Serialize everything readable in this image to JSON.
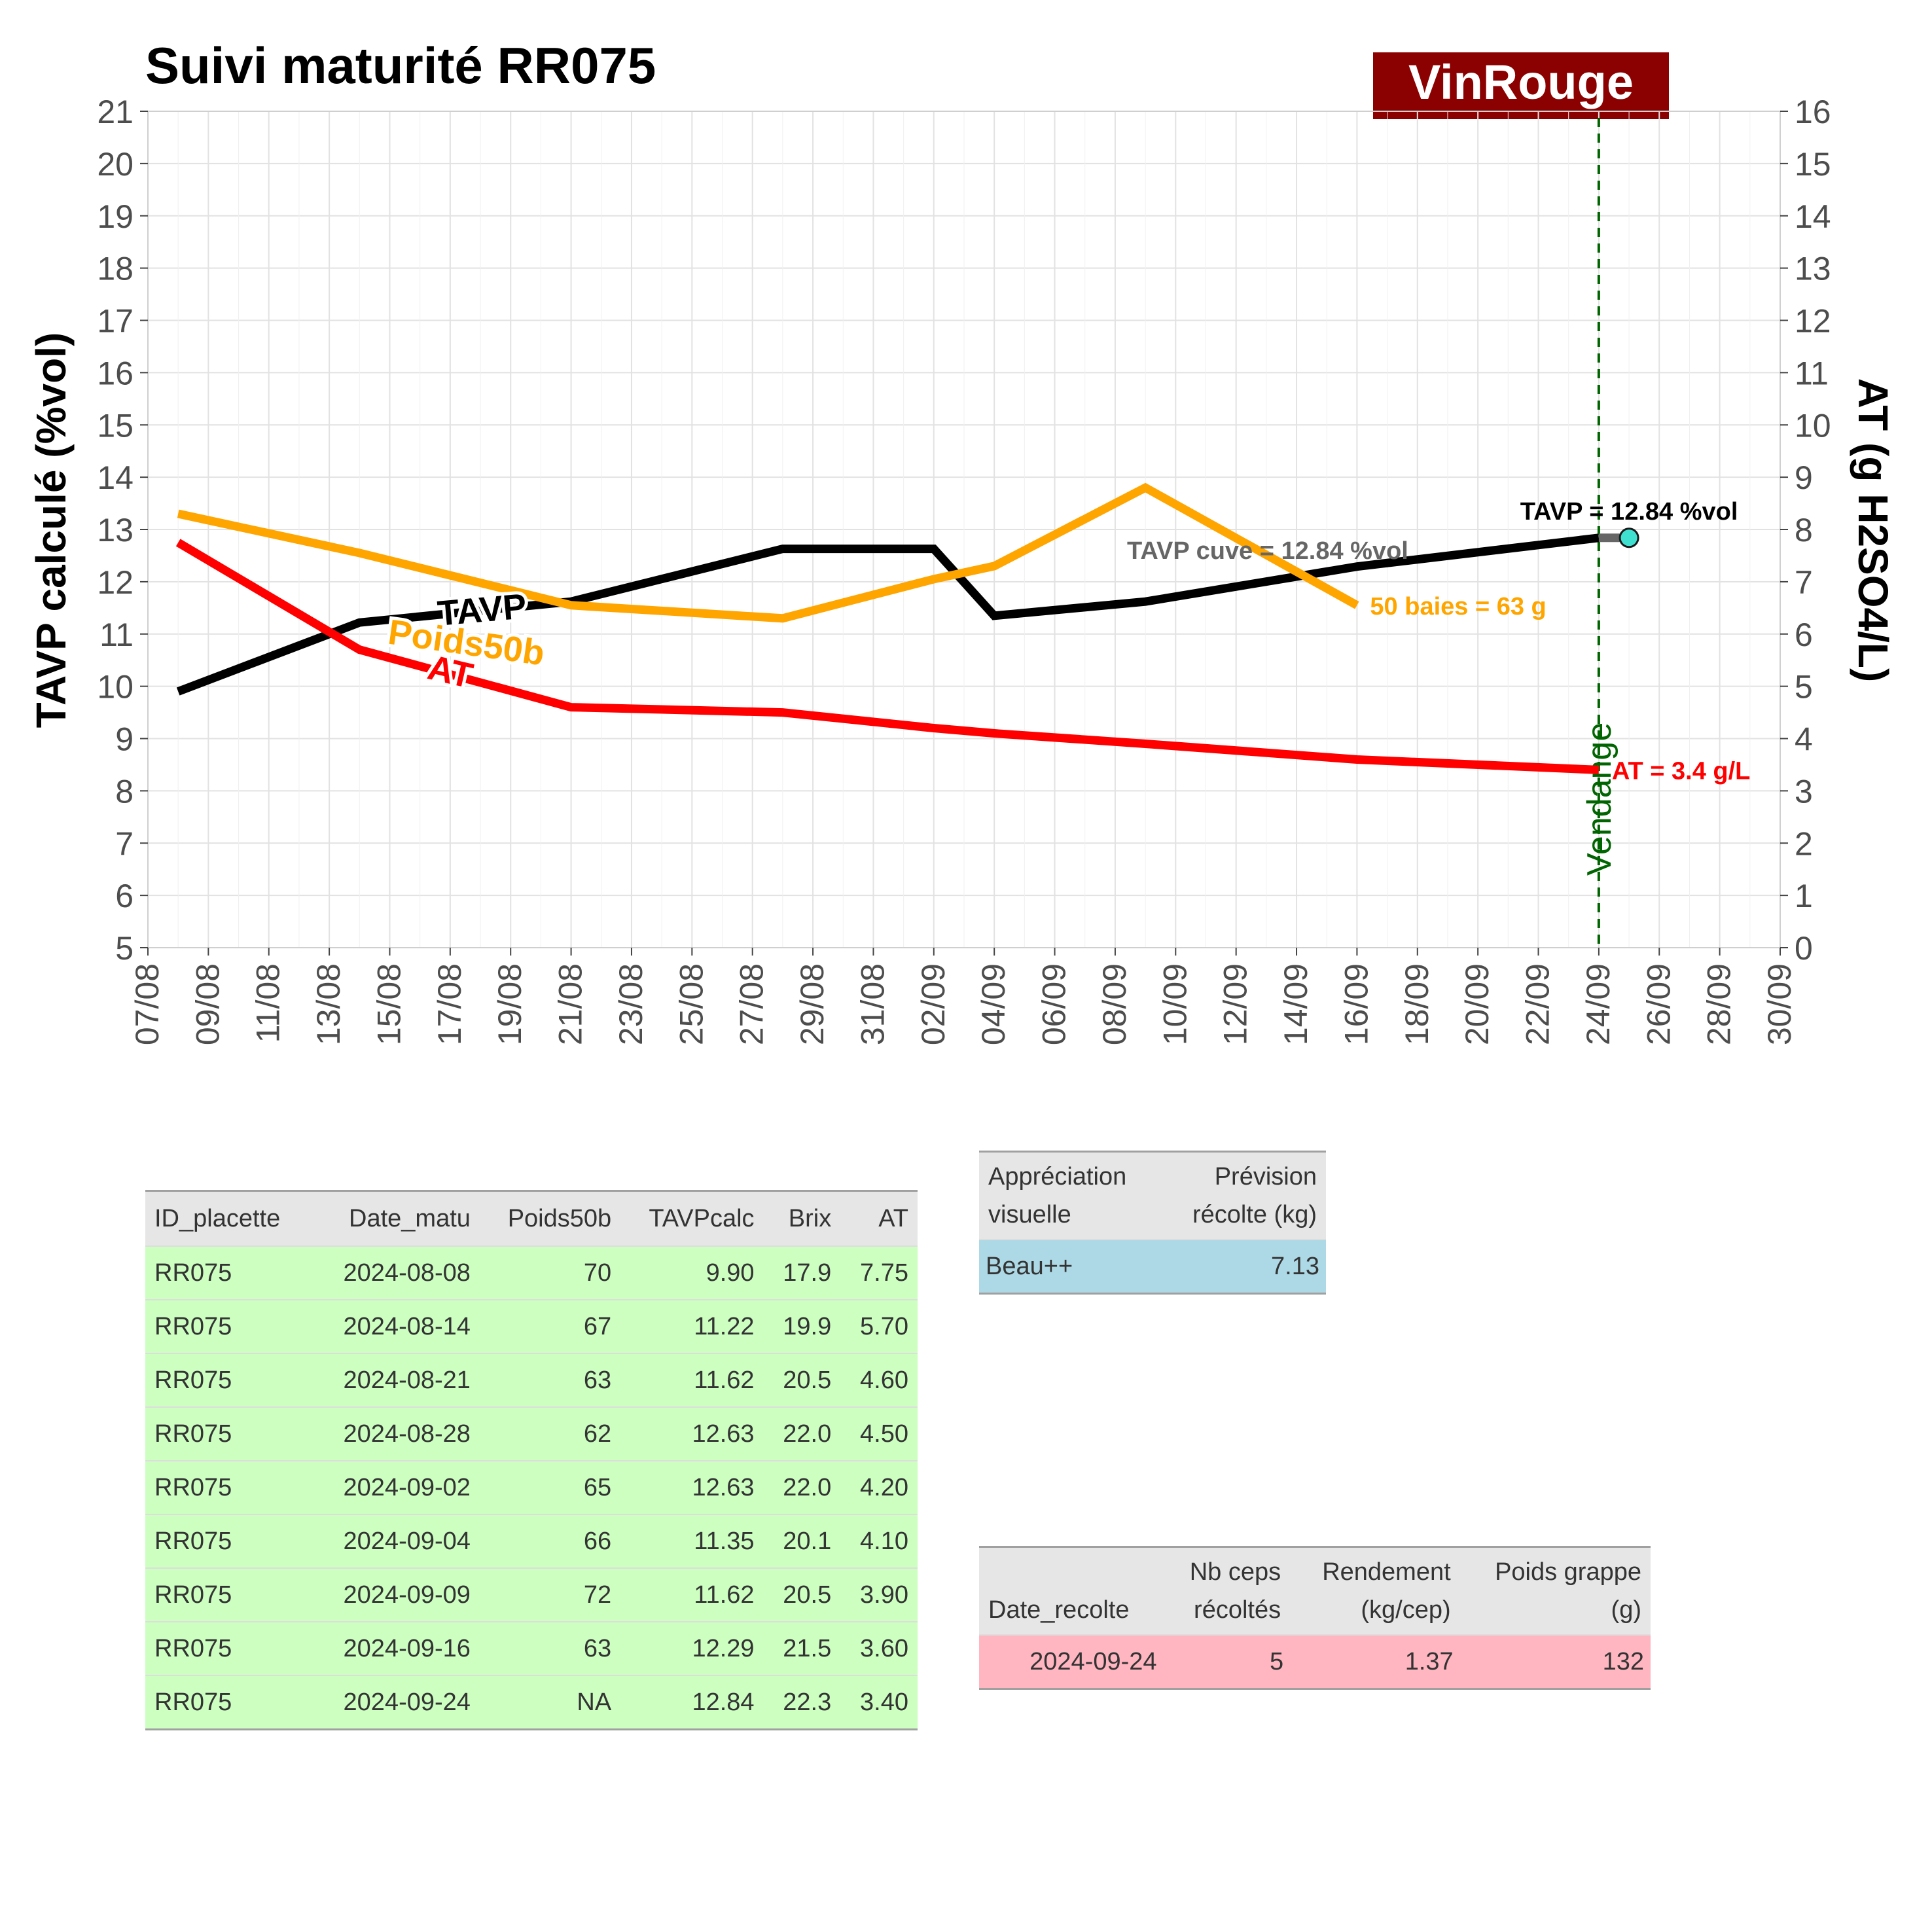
{
  "title": "Suivi maturité  RR075",
  "brand": {
    "label": "VinRouge",
    "color": "#8b0000"
  },
  "chart_data": {
    "type": "line",
    "y_left_label": "TAVP calculé (%vol)",
    "y_right_label": "AT (g H2SO4/L)",
    "y_left_range": [
      5,
      21
    ],
    "y_right_range": [
      0,
      16
    ],
    "x_range": [
      "2024-08-07",
      "2024-09-30"
    ],
    "x_tick_labels": [
      "07/08",
      "09/08",
      "11/08",
      "13/08",
      "15/08",
      "17/08",
      "19/08",
      "21/08",
      "23/08",
      "25/08",
      "27/08",
      "29/08",
      "31/08",
      "02/09",
      "04/09",
      "06/09",
      "08/09",
      "10/09",
      "12/09",
      "14/09",
      "16/09",
      "18/09",
      "20/09",
      "22/09",
      "24/09",
      "26/09",
      "28/09",
      "30/09"
    ],
    "y_left_ticks": [
      5,
      6,
      7,
      8,
      9,
      10,
      11,
      12,
      13,
      14,
      15,
      16,
      17,
      18,
      19,
      20,
      21
    ],
    "y_right_ticks": [
      0,
      1,
      2,
      3,
      4,
      5,
      6,
      7,
      8,
      9,
      10,
      11,
      12,
      13,
      14,
      15,
      16
    ],
    "grid": true,
    "dates": [
      "2024-08-08",
      "2024-08-14",
      "2024-08-21",
      "2024-08-28",
      "2024-09-02",
      "2024-09-04",
      "2024-09-09",
      "2024-09-16",
      "2024-09-24"
    ],
    "series": [
      {
        "name": "TAVP",
        "axis": "left",
        "color": "#000000",
        "values": [
          9.9,
          11.22,
          11.62,
          12.63,
          12.63,
          11.35,
          11.62,
          12.29,
          12.84
        ]
      },
      {
        "name": "Poids50b",
        "axis": "left",
        "color": "#ffa500",
        "values": [
          70,
          67,
          63,
          62,
          65,
          66,
          72,
          63,
          null
        ]
      },
      {
        "name": "AT",
        "axis": "right",
        "color": "#ff0000",
        "values": [
          7.75,
          5.7,
          4.6,
          4.5,
          4.2,
          4.1,
          3.9,
          3.6,
          3.4
        ]
      }
    ],
    "poids_scale_note": "",
    "vendange": {
      "label": "Vendange",
      "date": "2024-09-24",
      "color": "#006400"
    },
    "tavp_cuve": {
      "date": "2024-09-25",
      "value": 12.84,
      "label": "TAVP cuve = 12.84 %vol",
      "marker_color": "#40e0d0"
    },
    "annotations": [
      {
        "text": "TAVP = 12.84 %vol",
        "color": "#000000"
      },
      {
        "text": "50 baies = 63 g",
        "color": "#ffa500"
      },
      {
        "text": "AT = 3.4 g/L",
        "color": "#ff0000"
      }
    ]
  },
  "maturite_table": {
    "headers": [
      "ID_placette",
      "Date_matu",
      "Poids50b",
      "TAVPcalc",
      "Brix",
      "AT"
    ],
    "rows": [
      [
        "RR075",
        "2024-08-08",
        "70",
        "9.90",
        "17.9",
        "7.75"
      ],
      [
        "RR075",
        "2024-08-14",
        "67",
        "11.22",
        "19.9",
        "5.70"
      ],
      [
        "RR075",
        "2024-08-21",
        "63",
        "11.62",
        "20.5",
        "4.60"
      ],
      [
        "RR075",
        "2024-08-28",
        "62",
        "12.63",
        "22.0",
        "4.50"
      ],
      [
        "RR075",
        "2024-09-02",
        "65",
        "12.63",
        "22.0",
        "4.20"
      ],
      [
        "RR075",
        "2024-09-04",
        "66",
        "11.35",
        "20.1",
        "4.10"
      ],
      [
        "RR075",
        "2024-09-09",
        "72",
        "11.62",
        "20.5",
        "3.90"
      ],
      [
        "RR075",
        "2024-09-16",
        "63",
        "12.29",
        "21.5",
        "3.60"
      ],
      [
        "RR075",
        "2024-09-24",
        "NA",
        "12.84",
        "22.3",
        "3.40"
      ]
    ],
    "row_color": "#ccffc0"
  },
  "appreciation_table": {
    "headers": [
      [
        "Appréciation",
        "visuelle"
      ],
      [
        "Prévision",
        "récolte (kg)"
      ]
    ],
    "rows": [
      [
        "Beau++",
        "7.13"
      ]
    ],
    "row_color": "#add8e6"
  },
  "recolte_table": {
    "headers": [
      [
        "",
        "Date_recolte"
      ],
      [
        "Nb ceps",
        "récoltés"
      ],
      [
        "Rendement",
        "(kg/cep)"
      ],
      [
        "Poids grappe",
        "(g)"
      ]
    ],
    "rows": [
      [
        "2024-09-24",
        "5",
        "1.37",
        "132"
      ]
    ],
    "row_color": "#ffb6c1"
  }
}
